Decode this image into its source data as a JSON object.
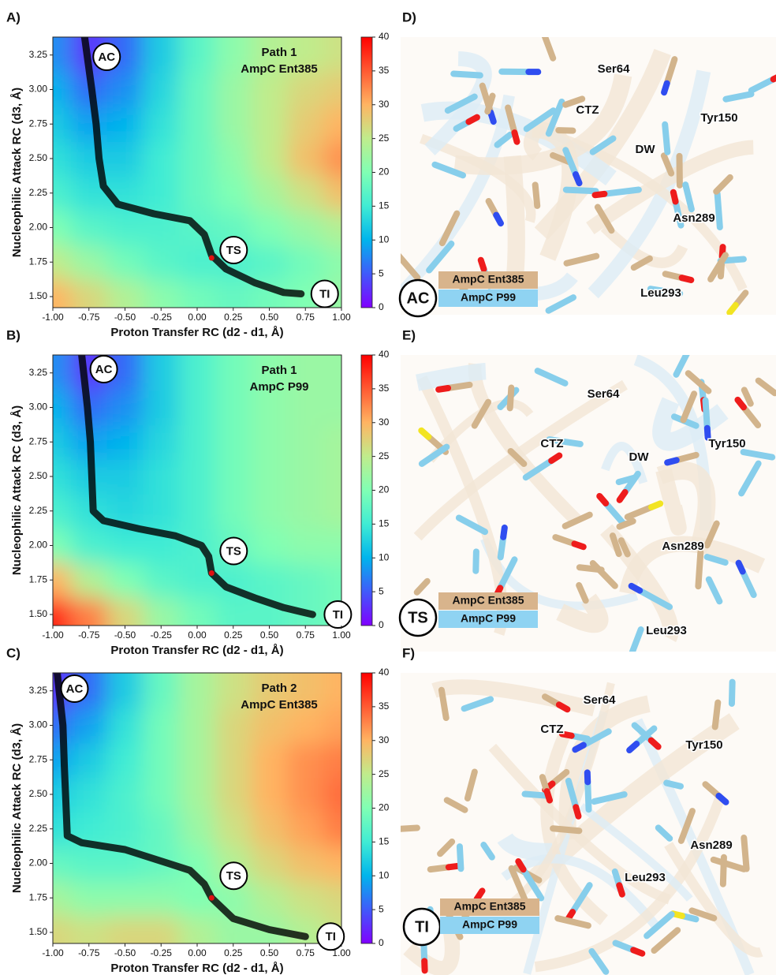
{
  "chart_data": [
    {
      "type": "heatmap",
      "panel_label": "A)",
      "title": "Path 1",
      "subtitle": "AmpC Ent385",
      "xlabel": "Proton Transfer RC (d2 - d1, Å)",
      "ylabel": "Nucleophilic Attack RC (d3, Å)",
      "colormap": "rainbow",
      "x": [
        -1,
        -0.75,
        -0.5,
        -0.25,
        0,
        0.25,
        0.5,
        0.75,
        1
      ],
      "y": [
        1.5,
        1.75,
        2,
        2.25,
        2.5,
        2.75,
        3,
        3.25
      ],
      "z": [
        [
          30,
          27,
          24,
          21,
          19,
          18,
          19,
          20,
          22
        ],
        [
          25,
          22,
          19,
          17,
          16,
          16,
          17,
          19,
          21
        ],
        [
          20,
          17,
          16,
          16,
          17,
          18,
          20,
          22,
          24
        ],
        [
          16,
          14,
          14,
          15,
          18,
          20,
          23,
          26,
          29
        ],
        [
          14,
          12,
          12,
          15,
          18,
          21,
          25,
          29,
          32
        ],
        [
          12,
          9,
          10,
          14,
          18,
          22,
          25,
          28,
          30
        ],
        [
          10,
          6,
          8,
          13,
          18,
          22,
          25,
          27,
          28
        ],
        [
          8,
          3,
          6,
          12,
          17,
          21,
          24,
          25,
          26
        ]
      ],
      "path_x": [
        -0.78,
        -0.73,
        -0.7,
        -0.68,
        -0.65,
        -0.55,
        -0.3,
        -0.05,
        0.05,
        0.1,
        0.2,
        0.4,
        0.6,
        0.72
      ],
      "path_y": [
        3.38,
        3.0,
        2.75,
        2.5,
        2.3,
        2.17,
        2.1,
        2.05,
        1.95,
        1.8,
        1.7,
        1.6,
        1.53,
        1.52
      ],
      "ts": {
        "x": 0.1,
        "y": 1.78
      },
      "annotations": [
        "AC",
        "TS",
        "TI"
      ],
      "xlim": [
        -1,
        1
      ],
      "ylim": [
        1.42,
        3.38
      ],
      "xticks": [
        {
          "value": -1,
          "label": "-1.00"
        },
        {
          "value": -0.75,
          "label": "-0.75"
        },
        {
          "value": -0.5,
          "label": "-0.50"
        },
        {
          "value": -0.25,
          "label": "-0.25"
        },
        {
          "value": 0,
          "label": "0.00"
        },
        {
          "value": 0.25,
          "label": "0.25"
        },
        {
          "value": 0.5,
          "label": "0.50"
        },
        {
          "value": 0.75,
          "label": "0.75"
        },
        {
          "value": 1,
          "label": "1.00"
        }
      ],
      "yticks": [
        {
          "value": 1.5,
          "label": "1.50"
        },
        1.75,
        {
          "value": 2,
          "label": "2.00"
        },
        2.25,
        {
          "value": 2.5,
          "label": "2.50"
        },
        2.75,
        {
          "value": 3,
          "label": "3.00"
        },
        3.25
      ],
      "zlim": [
        0,
        40
      ],
      "zticks": [
        0,
        5,
        10,
        15,
        20,
        25,
        30,
        35,
        40
      ]
    },
    {
      "type": "heatmap",
      "panel_label": "B)",
      "title": "Path 1",
      "subtitle": "AmpC P99",
      "xlabel": "Proton Transfer RC (d2 - d1, Å)",
      "ylabel": "Nucleophilic Attack RC (d3, Å)",
      "colormap": "rainbow",
      "x": [
        -1,
        -0.75,
        -0.5,
        -0.25,
        0,
        0.25,
        0.5,
        0.75,
        1
      ],
      "y": [
        1.5,
        1.75,
        2,
        2.25,
        2.5,
        2.75,
        3,
        3.25
      ],
      "z": [
        [
          38,
          33,
          27,
          22,
          19,
          17,
          17,
          18,
          19
        ],
        [
          30,
          24,
          20,
          17,
          16,
          16,
          17,
          18,
          19
        ],
        [
          20,
          16,
          15,
          15,
          16,
          18,
          20,
          21,
          21
        ],
        [
          16,
          14,
          13,
          14,
          16,
          19,
          21,
          22,
          23
        ],
        [
          14,
          12,
          12,
          14,
          16,
          19,
          21,
          22,
          23
        ],
        [
          12,
          9,
          10,
          13,
          16,
          19,
          21,
          22,
          23
        ],
        [
          10,
          6,
          8,
          12,
          16,
          19,
          21,
          22,
          22
        ],
        [
          8,
          3,
          6,
          12,
          16,
          19,
          21,
          22,
          22
        ]
      ],
      "path_x": [
        -0.8,
        -0.76,
        -0.74,
        -0.73,
        -0.72,
        -0.65,
        -0.4,
        -0.15,
        0.03,
        0.08,
        0.1,
        0.2,
        0.4,
        0.6,
        0.8
      ],
      "path_y": [
        3.38,
        3.0,
        2.75,
        2.5,
        2.25,
        2.18,
        2.12,
        2.07,
        2.0,
        1.92,
        1.8,
        1.7,
        1.62,
        1.55,
        1.5
      ],
      "ts": {
        "x": 0.1,
        "y": 1.8
      },
      "annotations": [
        "AC",
        "TS",
        "TI"
      ],
      "xlim": [
        -1,
        1
      ],
      "ylim": [
        1.42,
        3.38
      ],
      "xticks": [
        {
          "value": -1,
          "label": "-1.00"
        },
        {
          "value": -0.75,
          "label": "-0.75"
        },
        {
          "value": -0.5,
          "label": "-0.50"
        },
        {
          "value": -0.25,
          "label": "-0.25"
        },
        {
          "value": 0,
          "label": "0.00"
        },
        {
          "value": 0.25,
          "label": "0.25"
        },
        {
          "value": 0.5,
          "label": "0.50"
        },
        {
          "value": 0.75,
          "label": "0.75"
        },
        {
          "value": 1,
          "label": "1.00"
        }
      ],
      "yticks": [
        {
          "value": 1.5,
          "label": "1.50"
        },
        1.75,
        {
          "value": 2,
          "label": "2.00"
        },
        2.25,
        {
          "value": 2.5,
          "label": "2.50"
        },
        2.75,
        {
          "value": 3,
          "label": "3.00"
        },
        3.25
      ],
      "zlim": [
        0,
        40
      ],
      "zticks": [
        0,
        5,
        10,
        15,
        20,
        25,
        30,
        35,
        40
      ]
    },
    {
      "type": "heatmap",
      "panel_label": "C)",
      "title": "Path 2",
      "subtitle": "AmpC Ent385",
      "xlabel": "Proton Transfer RC (d2 - d1, Å)",
      "ylabel": "Nucleophilic Attack RC (d3, Å)",
      "colormap": "rainbow",
      "x": [
        -1,
        -0.75,
        -0.5,
        -0.25,
        0,
        0.25,
        0.5,
        0.75,
        1
      ],
      "y": [
        1.5,
        1.75,
        2,
        2.25,
        2.5,
        2.75,
        3,
        3.25
      ],
      "z": [
        [
          27,
          26,
          27,
          27,
          24,
          22,
          22,
          24,
          26
        ],
        [
          23,
          21,
          21,
          21,
          20,
          21,
          24,
          26,
          27
        ],
        [
          18,
          17,
          17,
          18,
          20,
          24,
          27,
          29,
          30
        ],
        [
          14,
          15,
          16,
          18,
          22,
          26,
          29,
          31,
          33
        ],
        [
          12,
          14,
          16,
          19,
          23,
          27,
          30,
          32,
          34
        ],
        [
          9,
          12,
          15,
          19,
          23,
          27,
          30,
          32,
          33
        ],
        [
          6,
          9,
          14,
          19,
          23,
          27,
          29,
          30,
          31
        ],
        [
          3,
          6,
          12,
          18,
          23,
          26,
          28,
          29,
          30
        ]
      ],
      "path_x": [
        -0.97,
        -0.93,
        -0.92,
        -0.91,
        -0.9,
        -0.8,
        -0.5,
        -0.2,
        -0.05,
        0.05,
        0.1,
        0.25,
        0.5,
        0.75
      ],
      "path_y": [
        3.38,
        3.0,
        2.7,
        2.45,
        2.2,
        2.15,
        2.1,
        2.0,
        1.95,
        1.85,
        1.75,
        1.6,
        1.52,
        1.47
      ],
      "ts": {
        "x": 0.1,
        "y": 1.75
      },
      "annotations": [
        "AC",
        "TS",
        "TI"
      ],
      "xlim": [
        -1,
        1
      ],
      "ylim": [
        1.42,
        3.38
      ],
      "xticks": [
        {
          "value": -1,
          "label": "-1.00"
        },
        {
          "value": -0.75,
          "label": "-0.75"
        },
        {
          "value": -0.5,
          "label": "-0.50"
        },
        {
          "value": -0.25,
          "label": "-0.25"
        },
        {
          "value": 0,
          "label": "0.00"
        },
        {
          "value": 0.25,
          "label": "0.25"
        },
        {
          "value": 0.5,
          "label": "0.50"
        },
        {
          "value": 0.75,
          "label": "0.75"
        },
        {
          "value": 1,
          "label": "1.00"
        }
      ],
      "yticks": [
        {
          "value": 1.5,
          "label": "1.50"
        },
        1.75,
        {
          "value": 2,
          "label": "2.00"
        },
        2.25,
        {
          "value": 2.5,
          "label": "2.50"
        },
        2.75,
        {
          "value": 3,
          "label": "3.00"
        },
        3.25
      ],
      "zlim": [
        0,
        40
      ],
      "zticks": [
        0,
        5,
        10,
        15,
        20,
        25,
        30,
        35,
        40
      ]
    }
  ],
  "structures": [
    {
      "panel_label": "D)",
      "state": "AC",
      "labels": [
        "Ser64",
        "CTZ",
        "Tyr150",
        "DW",
        "Asn289",
        "Leu293"
      ],
      "legend": [
        "AmpC Ent385",
        "AmpC P99"
      ]
    },
    {
      "panel_label": "E)",
      "state": "TS",
      "labels": [
        "Ser64",
        "CTZ",
        "DW",
        "Tyr150",
        "Asn289",
        "Leu293"
      ],
      "legend": [
        "AmpC Ent385",
        "AmpC P99"
      ]
    },
    {
      "panel_label": "F)",
      "state": "TI",
      "labels": [
        "Ser64",
        "CTZ",
        "Tyr150",
        "Asn289",
        "Leu293"
      ],
      "legend": [
        "AmpC Ent385",
        "AmpC P99"
      ]
    }
  ]
}
